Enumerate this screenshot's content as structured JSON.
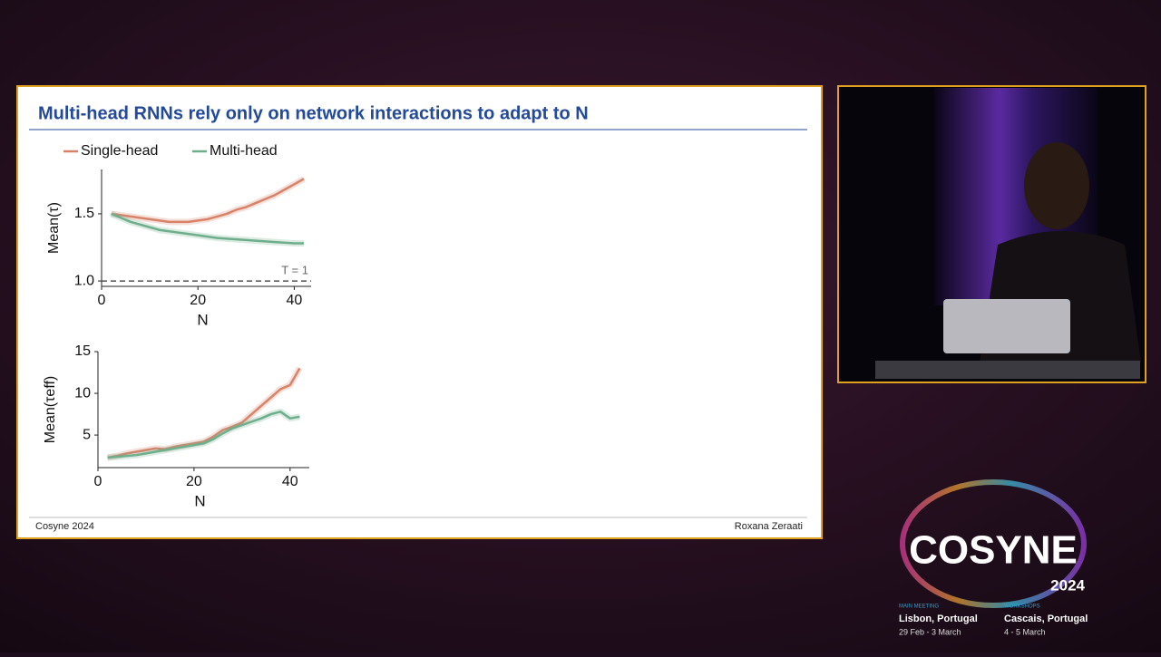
{
  "slide": {
    "title": "Multi-head RNNs rely only on network interactions to adapt to N",
    "footer_left": "Cosyne 2024",
    "footer_right": "Roxana Zeraati"
  },
  "chart_data": [
    {
      "type": "line",
      "xlabel": "N",
      "ylabel": "Mean(τ)",
      "annotation": "T = 1",
      "hline": 1,
      "x": [
        2,
        4,
        6,
        8,
        10,
        12,
        14,
        16,
        18,
        20,
        22,
        24,
        26,
        28,
        30,
        32,
        34,
        36,
        38,
        40,
        42
      ],
      "xlim": [
        0,
        43.5
      ],
      "xticks": [
        0,
        20,
        40
      ],
      "ylim": [
        0.96,
        1.83
      ],
      "yticks": [
        {
          "value": 1,
          "label": "1.0"
        },
        1.5
      ],
      "series": [
        {
          "name": "Single-head",
          "color": "#d9826a",
          "values": [
            1.5,
            1.49,
            1.48,
            1.47,
            1.46,
            1.45,
            1.44,
            1.44,
            1.44,
            1.45,
            1.46,
            1.48,
            1.5,
            1.53,
            1.55,
            1.58,
            1.61,
            1.64,
            1.68,
            1.72,
            1.76
          ]
        },
        {
          "name": "Multi-head",
          "color": "#6fae8c",
          "values": [
            1.5,
            1.47,
            1.44,
            1.42,
            1.4,
            1.38,
            1.37,
            1.36,
            1.35,
            1.34,
            1.33,
            1.32,
            1.315,
            1.31,
            1.305,
            1.3,
            1.295,
            1.29,
            1.285,
            1.28,
            1.28
          ]
        }
      ]
    },
    {
      "type": "line",
      "xlabel": "N",
      "ylabel": "Mean(τeff)",
      "x": [
        2,
        4,
        6,
        8,
        10,
        12,
        14,
        16,
        18,
        20,
        22,
        24,
        26,
        28,
        30,
        32,
        34,
        36,
        38,
        40,
        42
      ],
      "xlim": [
        0,
        44
      ],
      "xticks": [
        0,
        20,
        40
      ],
      "ylim": [
        1.1,
        15
      ],
      "yticks": [
        5,
        10,
        15
      ],
      "series": [
        {
          "color": "#d9826a",
          "values": [
            2.3,
            2.5,
            2.8,
            3.0,
            3.2,
            3.4,
            3.3,
            3.6,
            3.8,
            4.0,
            4.2,
            4.8,
            5.6,
            6.0,
            6.5,
            7.5,
            8.5,
            9.5,
            10.5,
            11.0,
            13.0
          ]
        },
        {
          "color": "#6fae8c",
          "values": [
            2.3,
            2.4,
            2.5,
            2.6,
            2.8,
            3.0,
            3.2,
            3.4,
            3.6,
            3.8,
            4.0,
            4.5,
            5.2,
            5.8,
            6.2,
            6.6,
            7.0,
            7.5,
            7.8,
            7.0,
            7.2
          ]
        }
      ]
    }
  ],
  "logo": {
    "name": "COSYNE",
    "year": "2024",
    "main_meeting": "MAIN MEETING",
    "main_location": "Lisbon, Portugal",
    "main_dates": "29 Feb - 3 March",
    "workshops": "WORKSHOPS",
    "workshops_location": "Cascais, Portugal",
    "workshops_dates": "4 - 5 March"
  }
}
